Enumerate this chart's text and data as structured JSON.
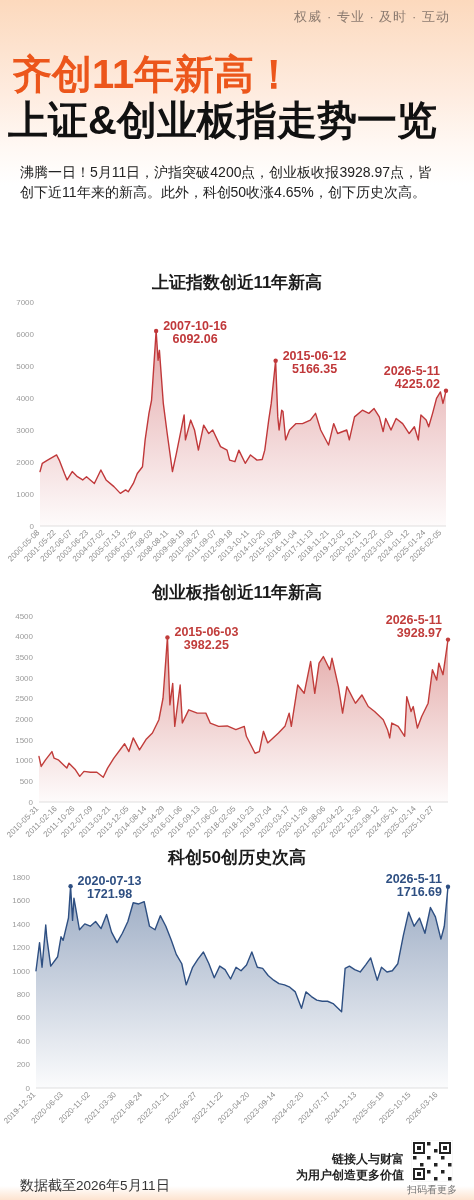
{
  "chart_data": [
    {
      "type": "other",
      "title": "齐创11年新高！",
      "subtitle": "上证&创业板指走势一览",
      "annotations": [
        "权威 · 专业 · 及时 · 互动",
        "沸腾一日！5月11日，沪指突破4200点，创业板收报3928.97点，皆创下近11年来的新高。此外，科创50收涨4.65%，创下历史次高。"
      ]
    },
    {
      "type": "area",
      "title": "上证指数创近11年新高",
      "x": [
        "2000-05-08",
        "2000-07",
        "2000-11",
        "2001-06",
        "2001-08",
        "2001-12",
        "2002-02",
        "2002-06",
        "2002-10",
        "2003-02",
        "2003-05",
        "2003-11",
        "2004-04",
        "2004-08",
        "2005-02",
        "2005-07",
        "2005-11",
        "2006-01",
        "2006-05",
        "2006-08",
        "2006-12",
        "2007-02",
        "2007-05",
        "2007-07",
        "2007-09",
        "2007-10-16",
        "2007-12",
        "2008-01",
        "2008-04",
        "2008-07",
        "2008-11",
        "2009-02",
        "2009-08",
        "2009-09",
        "2010-01",
        "2010-04",
        "2010-07",
        "2010-11",
        "2011-03",
        "2011-06",
        "2011-12",
        "2012-05",
        "2012-07",
        "2012-11",
        "2013-02",
        "2013-07",
        "2013-11",
        "2014-04",
        "2014-08",
        "2014-10",
        "2015-01",
        "2015-03",
        "2015-06-12",
        "2015-08",
        "2015-09",
        "2015-11",
        "2015-12",
        "2016-02",
        "2016-05",
        "2016-10",
        "2017-03",
        "2017-09",
        "2018-01",
        "2018-05",
        "2018-11",
        "2019-03",
        "2019-06",
        "2020-01",
        "2020-03",
        "2020-07",
        "2021-01",
        "2021-06",
        "2021-10",
        "2022-02",
        "2022-05",
        "2022-07",
        "2022-11",
        "2023-03",
        "2023-08",
        "2024-01",
        "2024-05",
        "2024-08",
        "2024-10",
        "2025-02",
        "2025-04",
        "2025-07",
        "2025-10",
        "2026-01",
        "2026-03",
        "2026-05-11"
      ],
      "series": [
        {
          "color": "#c0383a",
          "values": [
            1700,
            1960,
            2060,
            2220,
            2060,
            1640,
            1440,
            1700,
            1540,
            1440,
            1540,
            1330,
            1750,
            1440,
            1230,
            1020,
            1130,
            1070,
            1330,
            1640,
            1850,
            2690,
            3520,
            3930,
            5180,
            6092.06,
            5180,
            5490,
            3830,
            2890,
            1700,
            2270,
            3470,
            2690,
            3310,
            3000,
            2370,
            3150,
            2890,
            3000,
            2480,
            2370,
            2060,
            2010,
            2370,
            1960,
            2220,
            2060,
            2080,
            2370,
            3310,
            3830,
            5166.35,
            3410,
            3000,
            3620,
            3580,
            2690,
            3000,
            3200,
            3200,
            3310,
            3520,
            3000,
            2530,
            3200,
            2890,
            3000,
            2690,
            3410,
            3620,
            3520,
            3670,
            3410,
            2950,
            3360,
            3000,
            3360,
            3200,
            2890,
            3100,
            2690,
            3470,
            3310,
            3100,
            3520,
            3990,
            4190,
            3830,
            4225.02
          ]
        }
      ],
      "xlim": [
        "2000-05-08",
        "2026-05-11"
      ],
      "xticks": [
        "2000-05-08",
        "2001-05-22",
        "2002-06-07",
        "2003-06-23",
        "2004-07-02",
        "2005-07-13",
        "2006-07-25",
        "2007-08-03",
        "2008-08-11",
        "2009-08-19",
        "2010-08-27",
        "2011-09-07",
        "2012-09-18",
        "2013-10-11",
        "2014-10-20",
        "2015-10-28",
        "2016-11-04",
        "2017-11-13",
        "2018-11-21",
        "2019-12-02",
        "2020-12-11",
        "2021-12-22",
        "2023-01-03",
        "2024-01-12",
        "2025-01-24",
        "2026-02-05"
      ],
      "ylim": [
        0,
        7000
      ],
      "yticks": [
        0,
        1000,
        2000,
        3000,
        4000,
        5000,
        6000,
        7000
      ],
      "annotations": [
        {
          "text": "2007-10-16\n6092.06",
          "x": "2007-10-16",
          "y": 6092.06
        },
        {
          "text": "2015-06-12\n5166.35",
          "x": "2015-06-12",
          "y": 5166.35
        },
        {
          "text": "2026-5-11\n4225.02",
          "x": "2026-05-11",
          "y": 4225.02
        }
      ]
    },
    {
      "type": "area",
      "title": "创业板指创近11年新高",
      "x": [
        "2010-05-31",
        "2010-07",
        "2010-09",
        "2010-12",
        "2011-01",
        "2011-03",
        "2011-07",
        "2011-08",
        "2011-11",
        "2012-01",
        "2012-03",
        "2012-06",
        "2012-09",
        "2012-12",
        "2013-02",
        "2013-05",
        "2013-10",
        "2013-12",
        "2014-02",
        "2014-05",
        "2014-08",
        "2014-11",
        "2015-02",
        "2015-04",
        "2015-06-03",
        "2015-06-25",
        "2015-07-08",
        "2015-08-17",
        "2015-09-15",
        "2015-12",
        "2016-01",
        "2016-04",
        "2016-08",
        "2016-12",
        "2017-02",
        "2017-06",
        "2017-10",
        "2018-02",
        "2018-06",
        "2018-07",
        "2018-11",
        "2019-01",
        "2019-03",
        "2019-05",
        "2019-10",
        "2020-01",
        "2020-03",
        "2020-04",
        "2020-07",
        "2020-10",
        "2021-01",
        "2021-03",
        "2021-05",
        "2021-07",
        "2021-10",
        "2021-11",
        "2022-02",
        "2022-04",
        "2022-06",
        "2022-10",
        "2023-01",
        "2023-04",
        "2023-07",
        "2023-11",
        "2024-01",
        "2024-02",
        "2024-03",
        "2024-06",
        "2024-09",
        "2024-10",
        "2024-12",
        "2025-01",
        "2025-03",
        "2025-05",
        "2025-08",
        "2025-10",
        "2025-12",
        "2026-01",
        "2026-03",
        "2026-05-11"
      ],
      "series": [
        {
          "color": "#c13d3b",
          "values": [
            1100,
            860,
            1020,
            1220,
            1060,
            1020,
            820,
            940,
            780,
            620,
            740,
            720,
            720,
            600,
            820,
            1060,
            1410,
            1220,
            1550,
            1260,
            1510,
            1670,
            1990,
            2510,
            3982.25,
            2950,
            2350,
            2870,
            1830,
            2830,
            1910,
            2230,
            2150,
            2150,
            1910,
            1830,
            1840,
            1750,
            1830,
            1590,
            1180,
            1220,
            1710,
            1430,
            1670,
            1830,
            2150,
            1830,
            2830,
            2630,
            3400,
            2630,
            3360,
            3520,
            3200,
            3480,
            2790,
            2150,
            2790,
            2390,
            2590,
            2310,
            2190,
            1990,
            1750,
            1550,
            1910,
            1830,
            1590,
            2550,
            2190,
            2310,
            1790,
            2070,
            2390,
            3200,
            2950,
            3360,
            3080,
            3928.97
          ]
        }
      ],
      "xlim": [
        "2010-05-31",
        "2026-05-11"
      ],
      "xticks": [
        "2010-05-31",
        "2011-02-16",
        "2011-10-26",
        "2012-07-09",
        "2013-03-21",
        "2013-12-05",
        "2014-08-14",
        "2015-04-29",
        "2016-01-06",
        "2016-09-13",
        "2017-06-02",
        "2018-02-05",
        "2018-10-23",
        "2019-07-04",
        "2020-03-17",
        "2020-11-26",
        "2021-08-06",
        "2022-04-22",
        "2022-12-30",
        "2023-09-12",
        "2024-05-31",
        "2025-02-14",
        "2025-10-27"
      ],
      "ylim": [
        0,
        4500
      ],
      "yticks": [
        0,
        500,
        1000,
        1500,
        2000,
        2500,
        3000,
        3500,
        4000,
        4500
      ],
      "annotations": [
        {
          "text": "2015-06-03\n3982.25",
          "x": "2015-06-03",
          "y": 3982.25
        },
        {
          "text": "2026-5-11\n3928.97",
          "x": "2026-05-11",
          "y": 3928.97
        }
      ]
    },
    {
      "type": "area",
      "title": "科创50创历史次高",
      "x": [
        "2019-12-31",
        "2020-01-20",
        "2020-02-03",
        "2020-02-24",
        "2020-03",
        "2020-03-23",
        "2020-05",
        "2020-05-20",
        "2020-06",
        "2020-07",
        "2020-07-13",
        "2020-07-24",
        "2020-08",
        "2020-09",
        "2020-10",
        "2020-11",
        "2020-12",
        "2021-01",
        "2021-02",
        "2021-03",
        "2021-04",
        "2021-05",
        "2021-06",
        "2021-07",
        "2021-08",
        "2021-09",
        "2021-10",
        "2021-11",
        "2021-12",
        "2022-01",
        "2022-02",
        "2022-03",
        "2022-04",
        "2022-04-26",
        "2022-05",
        "2022-06",
        "2022-07",
        "2022-08",
        "2022-09",
        "2022-10",
        "2022-11",
        "2022-12",
        "2023-01",
        "2023-02",
        "2023-03",
        "2023-04",
        "2023-05",
        "2023-06",
        "2023-07",
        "2023-08",
        "2023-09",
        "2023-10",
        "2023-11",
        "2023-12",
        "2024-01",
        "2024-02-05",
        "2024-03",
        "2024-04",
        "2024-05",
        "2024-06",
        "2024-07",
        "2024-08",
        "2024-09-18",
        "2024-10-08",
        "2024-11",
        "2024-12",
        "2025-01",
        "2025-02",
        "2025-03",
        "2025-04-07",
        "2025-05",
        "2025-06",
        "2025-07",
        "2025-08",
        "2025-09",
        "2025-10",
        "2025-11",
        "2025-12",
        "2026-01",
        "2026-02",
        "2026-03",
        "2026-04",
        "2026-04-20",
        "2026-05-11"
      ],
      "series": [
        {
          "color": "#2e4f82",
          "values": [
            1000,
            1240,
            1030,
            1390,
            1280,
            1040,
            1120,
            1290,
            1260,
            1450,
            1721.98,
            1430,
            1620,
            1350,
            1400,
            1380,
            1420,
            1360,
            1480,
            1330,
            1240,
            1320,
            1420,
            1580,
            1570,
            1590,
            1380,
            1350,
            1470,
            1380,
            1260,
            1140,
            1060,
            880,
            900,
            1030,
            1100,
            1160,
            1060,
            940,
            1040,
            1010,
            930,
            1030,
            1000,
            1050,
            1160,
            1030,
            1020,
            960,
            920,
            890,
            880,
            860,
            820,
            680,
            820,
            780,
            750,
            740,
            740,
            720,
            650,
            1020,
            1040,
            1010,
            990,
            1050,
            1110,
            920,
            1030,
            990,
            1000,
            1060,
            1300,
            1500,
            1380,
            1450,
            1320,
            1540,
            1460,
            1270,
            1380,
            1716.69
          ]
        }
      ],
      "xlim": [
        "2019-12-31",
        "2026-05-11"
      ],
      "xticks": [
        "2019-12-31",
        "2020-06-03",
        "2020-11-02",
        "2021-03-30",
        "2021-08-24",
        "2022-01-21",
        "2022-06-27",
        "2022-11-22",
        "2023-04-20",
        "2023-09-14",
        "2024-02-20",
        "2024-07-17",
        "2024-12-13",
        "2025-05-19",
        "2025-10-15",
        "2026-03-16"
      ],
      "ylim": [
        0,
        1800
      ],
      "yticks": [
        0,
        200,
        400,
        600,
        800,
        1000,
        1200,
        1400,
        1600,
        1800
      ],
      "annotations": [
        {
          "text": "2020-07-13\n1721.98",
          "x": "2020-07-13",
          "y": 1721.98
        },
        {
          "text": "2026-5-11\n1716.69",
          "x": "2026-05-11",
          "y": 1716.69
        }
      ]
    },
    {
      "type": "other",
      "annotations": [
        "数据截至2026年5月11日",
        "链接人与财富",
        "为用户创造更多价值",
        "扫码看更多"
      ]
    }
  ]
}
